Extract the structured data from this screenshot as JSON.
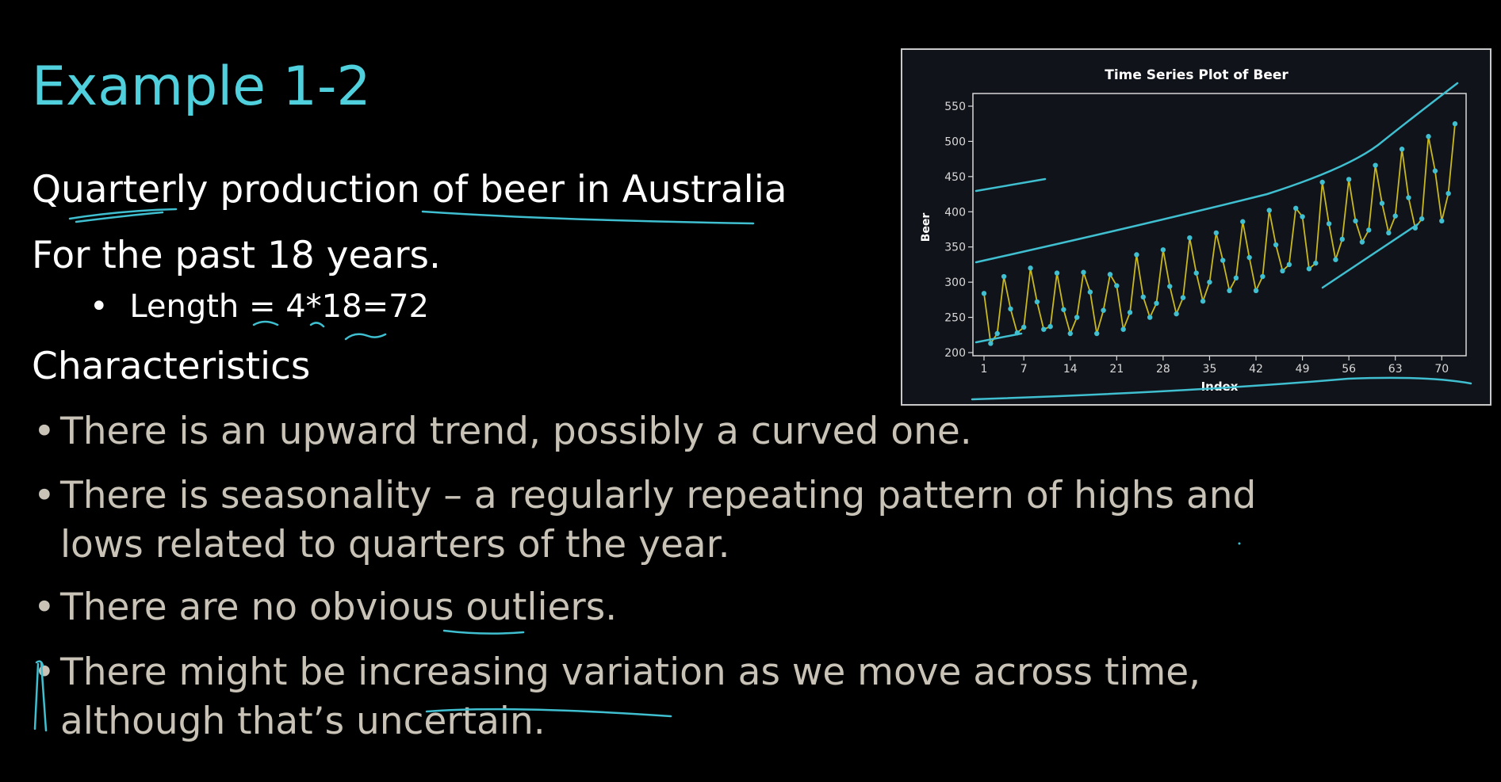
{
  "slide": {
    "title": "Example 1-2",
    "line1": "Quarterly production of beer in Australia",
    "line2": "For the past 18 years.",
    "sub_bullet": "Length = 4*18=72",
    "heading": "Characteristics",
    "bullets": [
      "There is an upward trend, possibly a curved one.",
      "There is seasonality – a regularly repeating pattern of highs and lows related to quarters of the year.",
      "There are no obvious outliers.",
      "There might be increasing variation as we move across time, although that’s uncertain."
    ],
    "bullet_char": "•"
  },
  "chart_data": {
    "type": "line",
    "title": "Time Series Plot of Beer",
    "xlabel": "Index",
    "ylabel": "Beer",
    "xlim": [
      1,
      72
    ],
    "ylim": [
      200,
      550
    ],
    "xticks": [
      1,
      7,
      14,
      21,
      28,
      35,
      42,
      49,
      56,
      63,
      70
    ],
    "yticks": [
      200,
      250,
      300,
      350,
      400,
      450,
      500,
      550
    ],
    "series": [
      {
        "x": [
          1,
          2,
          3,
          4,
          5,
          6,
          7,
          8,
          9,
          10,
          11,
          12,
          13,
          14,
          15,
          16,
          17,
          18,
          19,
          20,
          21,
          22,
          23,
          24,
          25,
          26,
          27,
          28,
          29,
          30,
          31,
          32,
          33,
          34,
          35,
          36,
          37,
          38,
          39,
          40,
          41,
          42,
          43,
          44,
          45,
          46,
          47,
          48,
          49,
          50,
          51,
          52,
          53,
          54,
          55,
          56,
          57,
          58,
          59,
          60,
          61,
          62,
          63,
          64,
          65,
          66,
          67,
          68,
          69,
          70,
          71,
          72
        ],
        "values": [
          284,
          213,
          227,
          308,
          262,
          228,
          236,
          320,
          272,
          233,
          237,
          313,
          261,
          227,
          250,
          314,
          286,
          227,
          260,
          311,
          295,
          233,
          257,
          339,
          279,
          250,
          270,
          346,
          294,
          255,
          278,
          363,
          313,
          273,
          300,
          370,
          331,
          288,
          306,
          386,
          335,
          288,
          308,
          402,
          353,
          316,
          325,
          405,
          393,
          319,
          327,
          442,
          383,
          332,
          361,
          446,
          387,
          357,
          374,
          466,
          412,
          370,
          394,
          489,
          420,
          377,
          390,
          507,
          458,
          387,
          426,
          525
        ]
      }
    ],
    "colors": {
      "series": "#c8b820",
      "markers": "#3fbfd0",
      "annotation": "#3fbfd0"
    }
  }
}
